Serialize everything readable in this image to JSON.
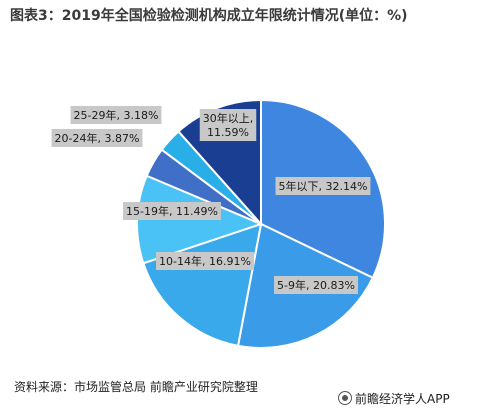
{
  "title": "图表3：2019年全国检验检测机构成立年限统计情况(单位：%)",
  "source": "资料来源：市场监管总局 前瞻产业研究院整理",
  "brand": "前瞻经济学人APP",
  "colors": {
    "label_bg": "#c8c8c8",
    "label_text": "#1a1a1a",
    "stroke": "#ffffff"
  },
  "chart_data": {
    "type": "pie",
    "title": "图表3：2019年全国检验检测机构成立年限统计情况(单位：%)",
    "slices": [
      {
        "name": "5年以下",
        "value": 32.14,
        "label": "5年以下, 32.14%",
        "color": "#3f86e0"
      },
      {
        "name": "5-9年",
        "value": 20.83,
        "label": "5-9年, 20.83%",
        "color": "#3a9be8"
      },
      {
        "name": "10-14年",
        "value": 16.91,
        "label": "10-14年, 16.91%",
        "color": "#39a9ec"
      },
      {
        "name": "15-19年",
        "value": 11.49,
        "label": "15-19年, 11.49%",
        "color": "#4bc2f5"
      },
      {
        "name": "20-24年",
        "value": 3.87,
        "label": "20-24年, 3.87%",
        "color": "#3f6fc6"
      },
      {
        "name": "25-29年",
        "value": 3.18,
        "label": "25-29年, 3.18%",
        "color": "#2aaee8"
      },
      {
        "name": "30年以上",
        "value": 11.59,
        "label": "30年以上, 11.59%",
        "color": "#1a3f92"
      }
    ]
  }
}
